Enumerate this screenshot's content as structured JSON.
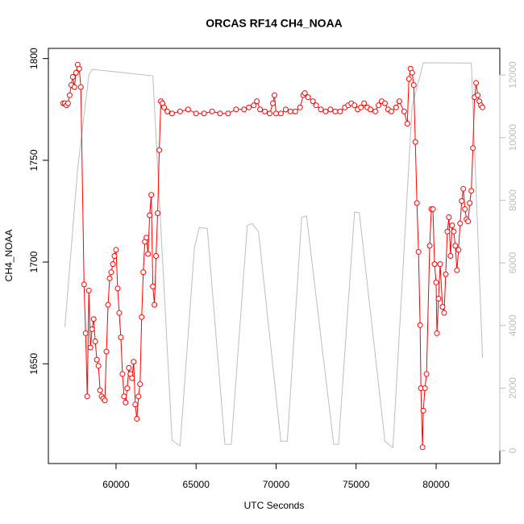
{
  "chart_data": {
    "type": "line",
    "title": "ORCAS RF14 CH4_NOAA",
    "xlabel": "UTC Seconds",
    "ylabel": "CH4_NOAA",
    "xlim": [
      55770,
      83980
    ],
    "xticks": [
      60000,
      65000,
      70000,
      75000,
      80000
    ],
    "ylim": [
      1601,
      1805
    ],
    "yticks": [
      1650,
      1700,
      1750,
      1800
    ],
    "y2lim": [
      -410,
      12850
    ],
    "y2ticks": [
      0,
      2000,
      4000,
      6000,
      8000,
      10000,
      12000
    ],
    "y2color": "#bebebe",
    "series": [
      {
        "color": "#bebebe",
        "axis": "y2",
        "marker": "none",
        "x": [
          56800,
          57600,
          58300,
          58500,
          60000,
          62300,
          63500,
          64000,
          64900,
          65200,
          65700,
          66800,
          67200,
          68200,
          68500,
          68900,
          70300,
          70700,
          71600,
          71900,
          73600,
          73900,
          74900,
          75200,
          76800,
          77300,
          78500,
          79200,
          82200,
          82900
        ],
        "values": [
          3950,
          9000,
          12000,
          12180,
          12100,
          11970,
          330,
          150,
          6490,
          7130,
          7100,
          200,
          200,
          7200,
          7250,
          7000,
          300,
          300,
          7450,
          7500,
          200,
          200,
          7620,
          7600,
          300,
          100,
          11000,
          12390,
          12380,
          2960
        ]
      },
      {
        "color": "#ff0000",
        "marker": "circle",
        "x": [
          56700,
          56800,
          56900,
          57000,
          57100,
          57200,
          57300,
          57400,
          57500,
          57600,
          57700,
          57800,
          58000,
          58100,
          58200,
          58300,
          58400,
          58500,
          58600,
          58700,
          58800,
          58900,
          59000,
          59100,
          59200,
          59300,
          59400,
          59500,
          59600,
          59700,
          59800,
          59900,
          60000,
          60100,
          60200,
          60300,
          60400,
          60500,
          60600,
          60700,
          60800,
          60900,
          61000,
          61100,
          61200,
          61300,
          61400,
          61500,
          61600,
          61700,
          61800,
          61900,
          62000,
          62100,
          62200,
          62300,
          62400,
          62500,
          62600,
          62700,
          62800,
          62900,
          63000,
          63200,
          63500,
          64000,
          64500,
          65000,
          65500,
          66000,
          66500,
          67000,
          67500,
          68000,
          68300,
          68600,
          68800,
          69000,
          69300,
          69600,
          69800,
          69900,
          70000,
          70300,
          70600,
          70900,
          71200,
          71500,
          71700,
          71800,
          72000,
          72300,
          72500,
          72800,
          73100,
          73400,
          73700,
          74000,
          74300,
          74500,
          74700,
          74900,
          75100,
          75300,
          75500,
          75700,
          75900,
          76200,
          76400,
          76600,
          76800,
          77000,
          77200,
          77500,
          77700,
          78000,
          78200,
          78300,
          78400,
          78500,
          78600,
          78700,
          78800,
          78900,
          79000,
          79050,
          79150,
          79200,
          79300,
          79400,
          79600,
          79700,
          79800,
          79900,
          80000,
          80050,
          80150,
          80250,
          80400,
          80500,
          80600,
          80700,
          80800,
          80900,
          81000,
          81100,
          81200,
          81300,
          81400,
          81500,
          81600,
          81700,
          81800,
          81900,
          82000,
          82100,
          82200,
          82300,
          82400,
          82500,
          82600,
          82700,
          82800,
          82900
        ],
        "values": [
          1778,
          1778,
          1777,
          1778,
          1782,
          1787,
          1791,
          1786,
          1793,
          1797,
          1795,
          1786,
          1689,
          1665,
          1634,
          1686,
          1658,
          1667,
          1672,
          1661,
          1652,
          1649,
          1637,
          1634,
          1633,
          1632,
          1656,
          1679,
          1692,
          1695,
          1699,
          1703,
          1706,
          1687,
          1675,
          1663,
          1645,
          1634,
          1631,
          1638,
          1648,
          1645,
          1643,
          1651,
          1630,
          1623,
          1634,
          1640,
          1673,
          1695,
          1710,
          1712,
          1704,
          1723,
          1733,
          1688,
          1679,
          1703,
          1724,
          1755,
          1779,
          1778,
          1776,
          1774,
          1773,
          1774,
          1775,
          1773,
          1773,
          1774,
          1773,
          1773,
          1775,
          1775,
          1776,
          1777,
          1779,
          1775,
          1774,
          1773,
          1778,
          1782,
          1773,
          1773,
          1775,
          1774,
          1774,
          1776,
          1782,
          1783,
          1781,
          1779,
          1777,
          1775,
          1774,
          1775,
          1774,
          1774,
          1776,
          1777,
          1778,
          1777,
          1775,
          1776,
          1778,
          1776,
          1775,
          1774,
          1777,
          1779,
          1778,
          1775,
          1774,
          1776,
          1779,
          1774,
          1768,
          1790,
          1795,
          1793,
          1787,
          1759,
          1729,
          1705,
          1669,
          1638,
          1609,
          1627,
          1638,
          1645,
          1708,
          1726,
          1726,
          1699,
          1690,
          1665,
          1682,
          1699,
          1678,
          1675,
          1694,
          1715,
          1722,
          1703,
          1718,
          1715,
          1708,
          1696,
          1706,
          1719,
          1730,
          1736,
          1726,
          1721,
          1720,
          1729,
          1735,
          1756,
          1781,
          1788,
          1782,
          1779,
          1777,
          1776
        ]
      }
    ]
  }
}
